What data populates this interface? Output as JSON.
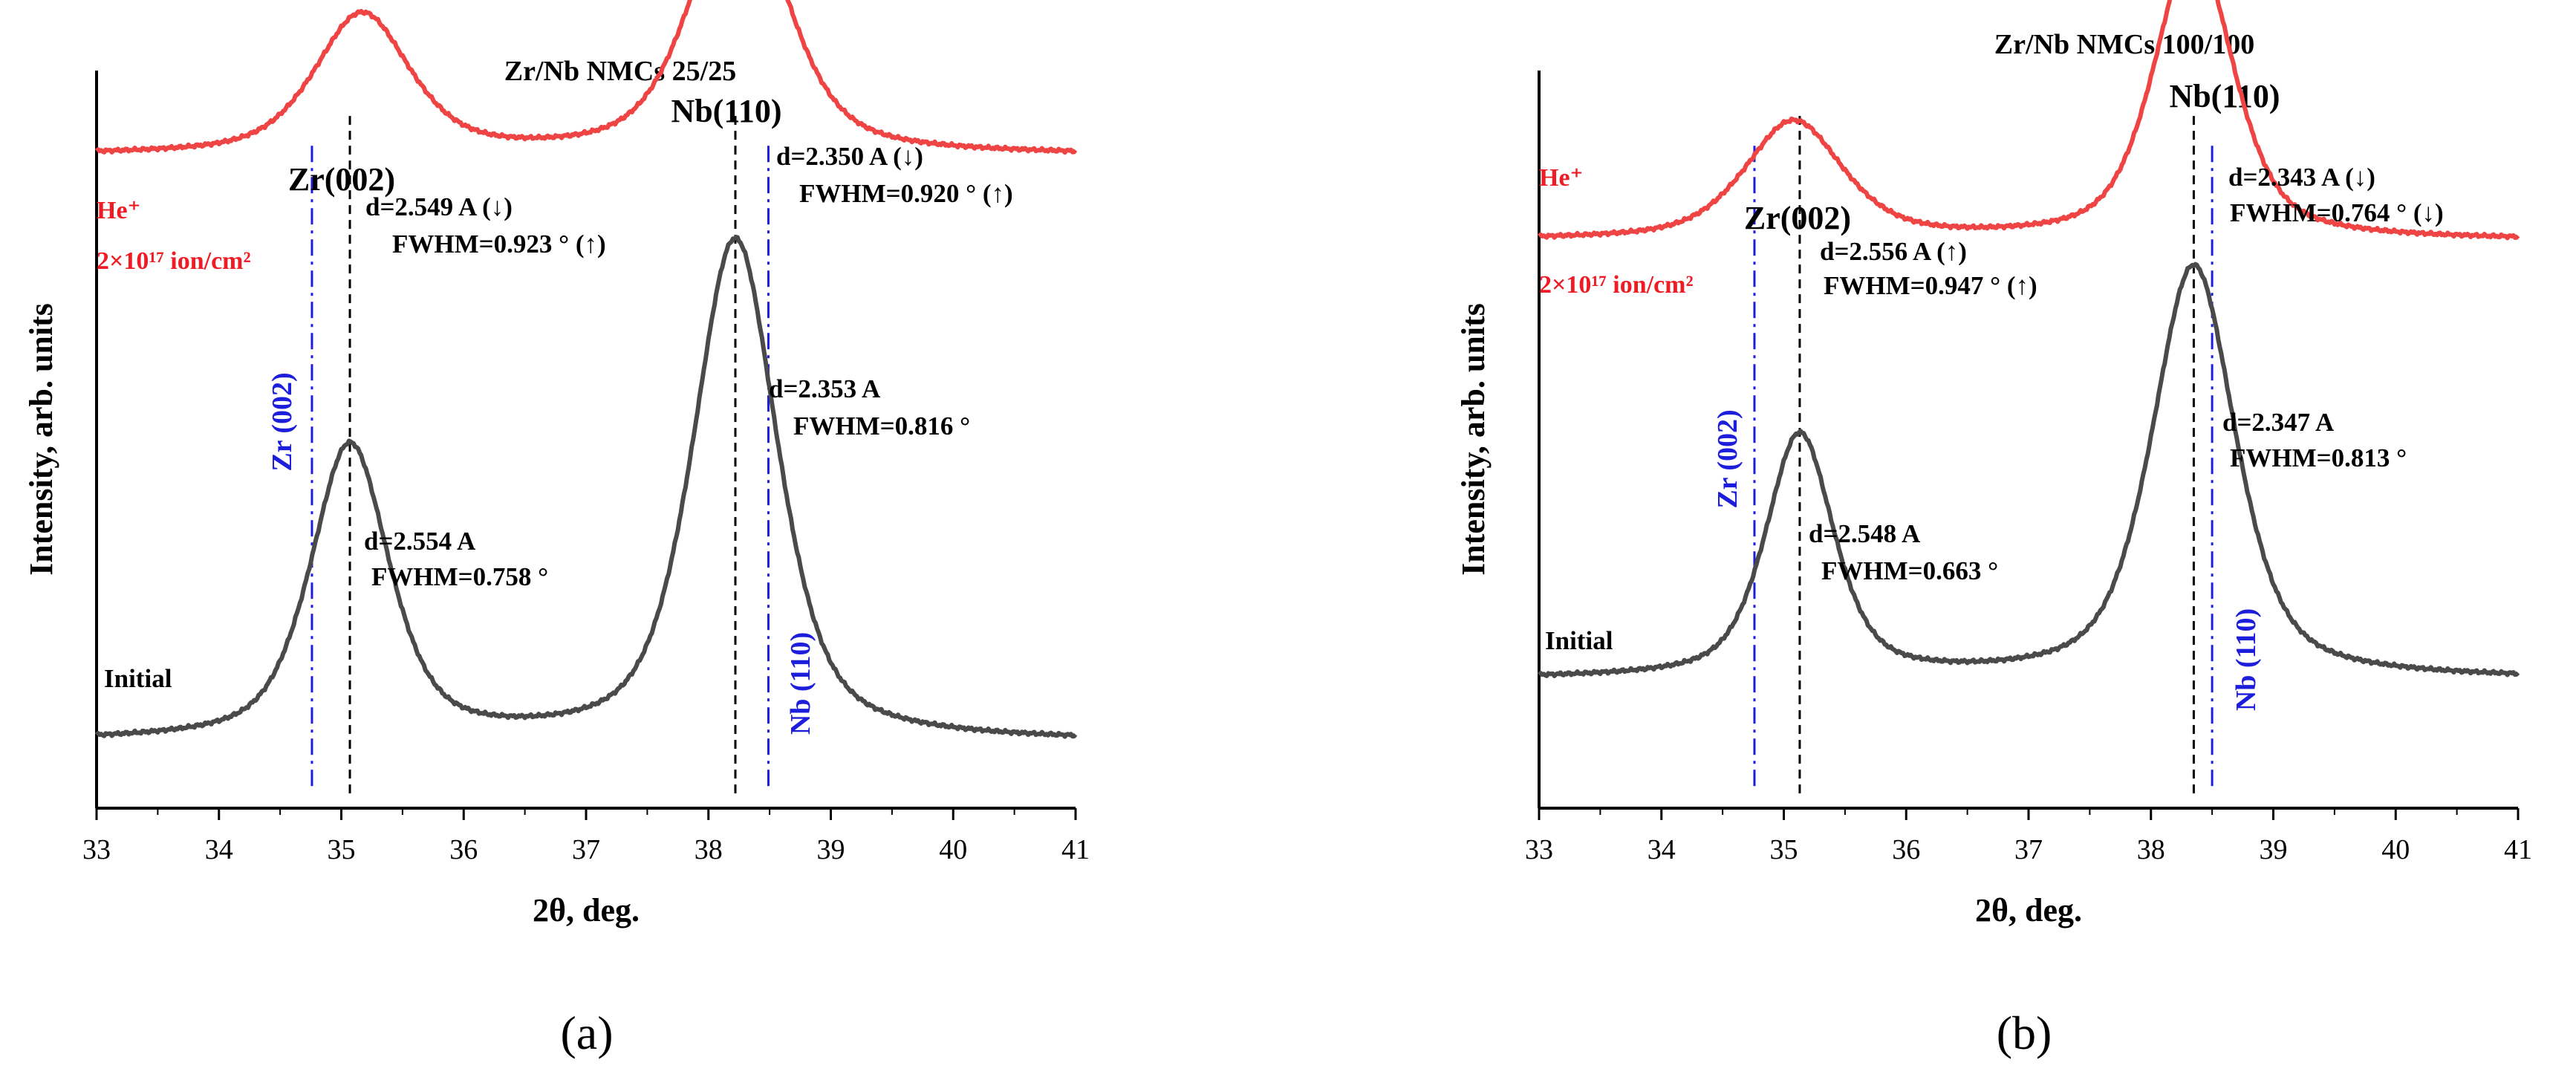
{
  "chart_data": [
    {
      "type": "line",
      "panel_label": "(a)",
      "title": "Zr/Nb NMCs 25/25",
      "xlabel": "2θ, deg.",
      "ylabel": "Intensity, arb. units",
      "xlim": [
        33,
        41
      ],
      "ylim": [
        0,
        1
      ],
      "xticks": [
        "33",
        "34",
        "35",
        "36",
        "37",
        "38",
        "39",
        "40",
        "41"
      ],
      "legend_placement": "none",
      "peak_labels": [
        "Zr(002)",
        "Nb(110)"
      ],
      "reference_lines": [
        {
          "label": "Zr (002)",
          "x": 34.76,
          "color": "#1d1ddc",
          "style": "dash-dot"
        },
        {
          "label": "Nb (110)",
          "x": 38.49,
          "color": "#1d1ddc",
          "style": "dash-dot"
        }
      ],
      "peak_lines": [
        35.07,
        38.22
      ],
      "irradiation_label": [
        "He⁺",
        "2×10¹⁷ ion/cm²"
      ],
      "series": [
        {
          "name": "Initial",
          "color": "#4a4a4a",
          "baseline": 0.09,
          "peaks": [
            {
              "center": 35.07,
              "height": 0.4,
              "fwhm": 0.76
            },
            {
              "center": 38.22,
              "height": 0.68,
              "fwhm": 0.82
            }
          ],
          "annotations": [
            {
              "lines": [
                "d=2.554 A",
                "FWHM=0.758 °"
              ]
            },
            {
              "lines": [
                "d=2.353 A",
                "FWHM=0.816 °"
              ]
            }
          ]
        },
        {
          "name": "He⁺ 2×10¹⁷ ion/cm²",
          "color": "#ee4444",
          "baseline": 0.885,
          "peaks": [
            {
              "center": 35.17,
              "height": 0.19,
              "fwhm": 0.92
            },
            {
              "center": 38.25,
              "height": 0.36,
              "fwhm": 0.92
            }
          ],
          "annotations": [
            {
              "lines": [
                "d=2.549 A (↓)",
                "FWHM=0.923 ° (↑)"
              ]
            },
            {
              "lines": [
                "d=2.350 A (↓)",
                "FWHM=0.920 ° (↑)"
              ]
            }
          ]
        }
      ]
    },
    {
      "type": "line",
      "panel_label": "(b)",
      "title": "Zr/Nb NMCs 100/100",
      "xlabel": "2θ, deg.",
      "ylabel": "Intensity, arb. units",
      "xlim": [
        33,
        41
      ],
      "ylim": [
        0,
        1
      ],
      "xticks": [
        "33",
        "34",
        "35",
        "36",
        "37",
        "38",
        "39",
        "40",
        "41"
      ],
      "legend_placement": "none",
      "peak_labels": [
        "Zr(002)",
        "Nb(110)"
      ],
      "reference_lines": [
        {
          "label": "Zr (002)",
          "x": 34.76,
          "color": "#1d1ddc",
          "style": "dash-dot"
        },
        {
          "label": "Nb (110)",
          "x": 38.5,
          "color": "#1d1ddc",
          "style": "dash-dot"
        }
      ],
      "peak_lines": [
        35.13,
        38.35
      ],
      "irradiation_label": [
        "He⁺",
        "2×10¹⁷ ion/cm²"
      ],
      "series": [
        {
          "name": "Initial",
          "color": "#4a4a4a",
          "baseline": 0.175,
          "peaks": [
            {
              "center": 35.13,
              "height": 0.33,
              "fwhm": 0.66
            },
            {
              "center": 38.35,
              "height": 0.56,
              "fwhm": 0.81
            }
          ],
          "annotations": [
            {
              "lines": [
                "d=2.548 A",
                "FWHM=0.663 °"
              ]
            },
            {
              "lines": [
                "d=2.347 A",
                "FWHM=0.813 °"
              ]
            }
          ]
        },
        {
          "name": "He⁺ 2×10¹⁷ ion/cm²",
          "color": "#ee4444",
          "baseline": 0.77,
          "peaks": [
            {
              "center": 35.08,
              "height": 0.16,
              "fwhm": 0.95
            },
            {
              "center": 38.35,
              "height": 0.4,
              "fwhm": 0.76
            }
          ],
          "annotations": [
            {
              "lines": [
                "d=2.556 A (↑)",
                "FWHM=0.947 ° (↑)"
              ]
            },
            {
              "lines": [
                "d=2.343 A (↓)",
                "FWHM=0.764 ° (↓)"
              ]
            }
          ]
        }
      ]
    }
  ]
}
